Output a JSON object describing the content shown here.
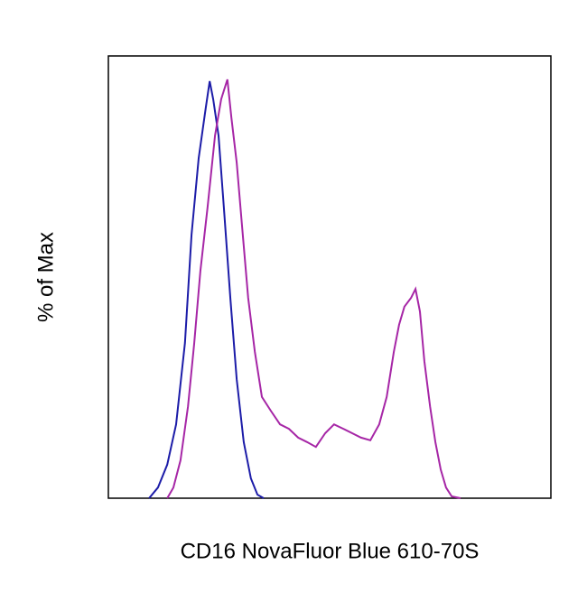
{
  "chart_data": {
    "type": "line",
    "xlabel": "CD16 NovaFluor Blue 610-70S",
    "ylabel": "% of Max",
    "xlim": [
      0,
      100
    ],
    "ylim": [
      0,
      100
    ],
    "series": [
      {
        "color": "#1c1ca8",
        "x": [
          9.2,
          11.2,
          13.3,
          15.3,
          17.3,
          18.8,
          20.4,
          22.0,
          22.9,
          23.7,
          24.9,
          26.1,
          27.6,
          29.0,
          30.6,
          32.2,
          33.7,
          35.1
        ],
        "values": [
          0,
          2.4,
          7.6,
          16.7,
          35.1,
          59.6,
          76.9,
          88.2,
          94.3,
          90.2,
          82.0,
          65.7,
          44.9,
          26.9,
          12.7,
          4.5,
          0.8,
          0
        ]
      },
      {
        "color": "#a626a6",
        "x": [
          13.3,
          14.7,
          16.3,
          18.0,
          19.4,
          20.8,
          22.4,
          24.1,
          25.5,
          26.9,
          27.8,
          29.0,
          30.2,
          31.6,
          33.1,
          34.7,
          36.7,
          38.8,
          40.8,
          42.9,
          44.9,
          46.9,
          49.0,
          51.0,
          53.1,
          55.1,
          57.1,
          59.2,
          61.2,
          62.9,
          64.5,
          65.7,
          66.9,
          68.4,
          69.4,
          70.4,
          71.4,
          72.7,
          73.9,
          75.1,
          76.3,
          77.6,
          79.6
        ],
        "values": [
          0,
          2.4,
          8.6,
          20.8,
          35.1,
          51.4,
          65.7,
          82.0,
          90.2,
          94.7,
          86.1,
          75.9,
          61.6,
          45.3,
          33.1,
          22.9,
          19.8,
          16.7,
          15.7,
          13.7,
          12.7,
          11.6,
          14.7,
          16.7,
          15.7,
          14.7,
          13.7,
          13.1,
          16.7,
          22.9,
          33.1,
          39.2,
          43.3,
          45.3,
          47.3,
          42.2,
          31.0,
          20.8,
          12.7,
          6.5,
          2.4,
          0.4,
          0
        ]
      }
    ]
  }
}
